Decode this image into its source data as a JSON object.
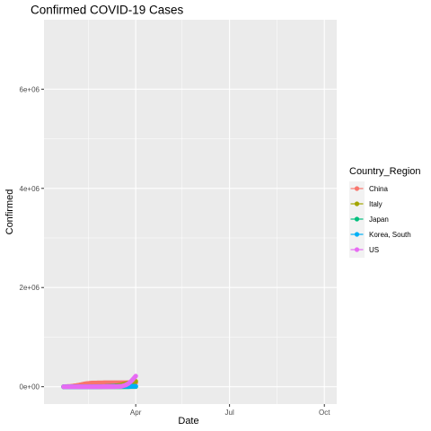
{
  "chart_data": {
    "type": "line",
    "title": "Confirmed COVID-19 Cases",
    "xlabel": "Date",
    "ylabel": "Confirmed",
    "x_ticks": [
      "Apr",
      "Jul",
      "Oct"
    ],
    "y_ticks": [
      "0e+00",
      "2e+06",
      "4e+06",
      "6e+06"
    ],
    "xlim": [
      "2020-01-03",
      "2020-10-13"
    ],
    "ylim": [
      -350000,
      7400000
    ],
    "legend": {
      "title": "Country_Region",
      "position": "right"
    },
    "series": [
      {
        "name": "China",
        "color": "#F8766D",
        "x": [
          "2020-01-22",
          "2020-01-29",
          "2020-02-05",
          "2020-02-12",
          "2020-02-19",
          "2020-02-26",
          "2020-03-04",
          "2020-03-11",
          "2020-03-18",
          "2020-03-25",
          "2020-04-01"
        ],
        "y": [
          550,
          7700,
          28000,
          60000,
          75000,
          78500,
          80400,
          80900,
          81100,
          81600,
          82300
        ]
      },
      {
        "name": "Italy",
        "color": "#A3A500",
        "x": [
          "2020-01-22",
          "2020-02-19",
          "2020-02-26",
          "2020-03-04",
          "2020-03-11",
          "2020-03-18",
          "2020-03-25",
          "2020-04-01"
        ],
        "y": [
          0,
          3,
          450,
          3100,
          12500,
          36000,
          74000,
          110000
        ]
      },
      {
        "name": "Japan",
        "color": "#00BF7D",
        "x": [
          "2020-01-22",
          "2020-02-12",
          "2020-03-04",
          "2020-03-25",
          "2020-04-01"
        ],
        "y": [
          2,
          28,
          300,
          1300,
          2200
        ]
      },
      {
        "name": "Korea, South",
        "color": "#00B0F6",
        "x": [
          "2020-01-22",
          "2020-02-19",
          "2020-02-26",
          "2020-03-04",
          "2020-03-11",
          "2020-03-18",
          "2020-03-25",
          "2020-04-01"
        ],
        "y": [
          1,
          100,
          1600,
          5600,
          7800,
          8400,
          9100,
          9900
        ]
      },
      {
        "name": "US",
        "color": "#E76BF3",
        "x": [
          "2020-01-22",
          "2020-02-19",
          "2020-03-04",
          "2020-03-11",
          "2020-03-18",
          "2020-03-22",
          "2020-03-25",
          "2020-03-28",
          "2020-04-01"
        ],
        "y": [
          1,
          15,
          150,
          1300,
          8000,
          33000,
          65000,
          120000,
          215000
        ]
      }
    ]
  }
}
